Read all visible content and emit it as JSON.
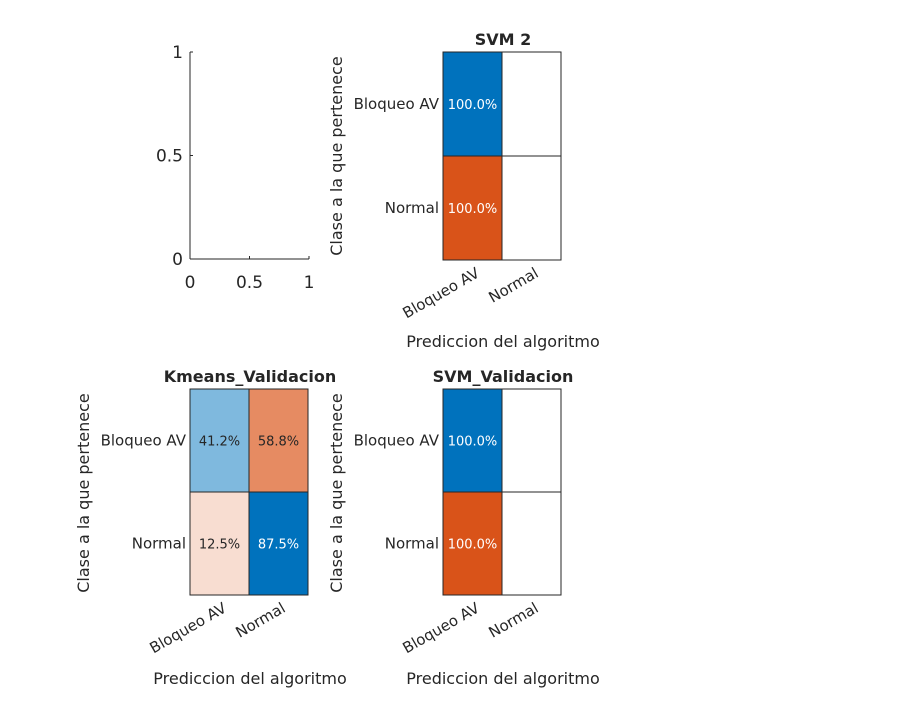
{
  "chart_data": [
    {
      "type": "line",
      "title": "",
      "xlabel": "",
      "ylabel": "",
      "xlim": [
        0,
        1
      ],
      "ylim": [
        0,
        1
      ],
      "x_ticks": [
        "0",
        "0.5",
        "1"
      ],
      "y_ticks": [
        "0",
        "0.5",
        "1"
      ],
      "series": []
    },
    {
      "type": "heatmap",
      "title": "SVM 2",
      "xlabel": "Prediccion del algoritmo",
      "ylabel": "Clase a la que pertenece",
      "rows": [
        "Bloqueo AV",
        "Normal"
      ],
      "cols": [
        "Bloqueo AV",
        "Normal"
      ],
      "values": [
        [
          100.0,
          null
        ],
        [
          100.0,
          null
        ]
      ],
      "labels": [
        [
          "100.0%",
          ""
        ],
        [
          "100.0%",
          ""
        ]
      ],
      "colors": [
        [
          "#0072BD",
          "#FFFFFF"
        ],
        [
          "#D95319",
          "#FFFFFF"
        ]
      ],
      "text_colors": [
        [
          "#FFFFFF",
          "#262626"
        ],
        [
          "#FFFFFF",
          "#262626"
        ]
      ]
    },
    {
      "type": "heatmap",
      "title": "Kmeans_Validacion",
      "xlabel": "Prediccion del algoritmo",
      "ylabel": "Clase a la que pertenece",
      "rows": [
        "Bloqueo AV",
        "Normal"
      ],
      "cols": [
        "Bloqueo AV",
        "Normal"
      ],
      "values": [
        [
          41.2,
          58.8
        ],
        [
          12.5,
          87.5
        ]
      ],
      "labels": [
        [
          "41.2%",
          "58.8%"
        ],
        [
          "12.5%",
          "87.5%"
        ]
      ],
      "colors": [
        [
          "#7FB9DE",
          "#E68B62"
        ],
        [
          "#F8DDD1",
          "#0072BD"
        ]
      ],
      "text_colors": [
        [
          "#262626",
          "#262626"
        ],
        [
          "#262626",
          "#FFFFFF"
        ]
      ]
    },
    {
      "type": "heatmap",
      "title": "SVM_Validacion",
      "xlabel": "Prediccion del algoritmo",
      "ylabel": "Clase a la que pertenece",
      "rows": [
        "Bloqueo AV",
        "Normal"
      ],
      "cols": [
        "Bloqueo AV",
        "Normal"
      ],
      "values": [
        [
          100.0,
          null
        ],
        [
          100.0,
          null
        ]
      ],
      "labels": [
        [
          "100.0%",
          ""
        ],
        [
          "100.0%",
          ""
        ]
      ],
      "colors": [
        [
          "#0072BD",
          "#FFFFFF"
        ],
        [
          "#D95319",
          "#FFFFFF"
        ]
      ],
      "text_colors": [
        [
          "#FFFFFF",
          "#262626"
        ],
        [
          "#FFFFFF",
          "#262626"
        ]
      ]
    }
  ]
}
